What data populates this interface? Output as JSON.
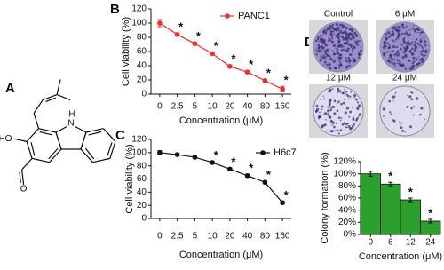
{
  "panel_labels": [
    "A",
    "B",
    "C",
    "D"
  ],
  "structure_atoms": {
    "nitrogen": "N",
    "hydrogen": "H",
    "hydroxyl": "HO",
    "oxygen": "O"
  },
  "plate_labels": [
    "Control",
    "6 μM",
    "12 μM",
    "24 μM"
  ],
  "chart_data": [
    {
      "type": "line",
      "panel": "B",
      "xlabel": "Concentration (μM)",
      "ylabel": "Cell viability (%)",
      "categories": [
        "0",
        "2.5",
        "5",
        "10",
        "20",
        "40",
        "80",
        "160"
      ],
      "series": [
        {
          "name": "PANC1",
          "color": "#e8312f",
          "values": [
            100,
            84,
            71,
            57,
            39,
            31,
            19,
            7
          ],
          "errors": [
            5,
            2,
            2,
            2,
            2,
            2,
            2,
            4
          ],
          "significance": [
            null,
            "*",
            "*",
            "*",
            "*",
            "*",
            "*",
            "*"
          ]
        }
      ],
      "ylim": [
        0,
        120
      ],
      "yticks": [
        0,
        20,
        40,
        60,
        80,
        100,
        120
      ],
      "legend": "top-right"
    },
    {
      "type": "line",
      "panel": "C",
      "xlabel": "Concentration (μM)",
      "ylabel": "Cell viability (%)",
      "categories": [
        "0",
        "2.5",
        "5",
        "10",
        "20",
        "40",
        "80",
        "160"
      ],
      "series": [
        {
          "name": "H6c7",
          "color": "#111111",
          "values": [
            100,
            97,
            93,
            85,
            75,
            65,
            55,
            24
          ],
          "errors": [
            3,
            2,
            2,
            2,
            2,
            2,
            2,
            2
          ],
          "significance": [
            null,
            null,
            null,
            "*",
            "*",
            "*",
            "*",
            "*"
          ]
        }
      ],
      "ylim": [
        0,
        120
      ],
      "yticks": [
        0,
        20,
        40,
        60,
        80,
        100,
        120
      ],
      "legend": "top-right"
    },
    {
      "type": "bar",
      "panel": null,
      "xlabel": "Concentration (μM)",
      "ylabel": "Colony formation (%)",
      "categories": [
        "0",
        "6",
        "12",
        "24"
      ],
      "color": "#2ca02c",
      "values": [
        100,
        83,
        57,
        22
      ],
      "errors": [
        4,
        3,
        3,
        3
      ],
      "significance": [
        null,
        "*",
        "*",
        "*"
      ],
      "ylim": [
        0,
        120
      ],
      "yticks": [
        {
          "value": 0,
          "label": "0%"
        },
        {
          "value": 20,
          "label": "20%"
        },
        {
          "value": 40,
          "label": "40%"
        },
        {
          "value": 60,
          "label": "60%"
        },
        {
          "value": 80,
          "label": "80%"
        },
        {
          "value": 100,
          "label": "100%"
        },
        {
          "value": 120,
          "label": "120%"
        }
      ]
    }
  ]
}
